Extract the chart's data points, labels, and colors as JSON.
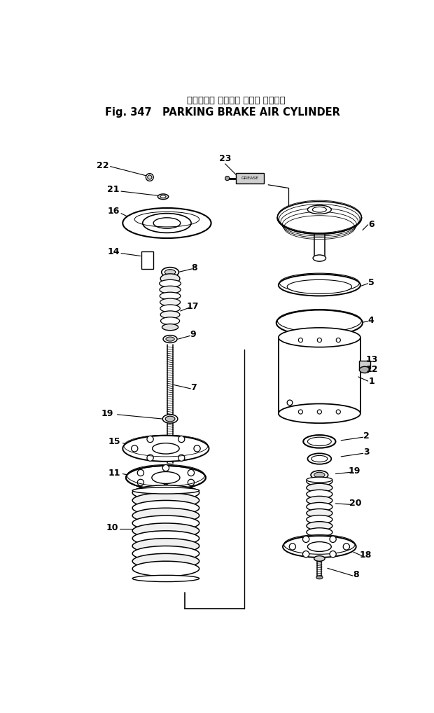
{
  "title_japanese": "パーキング ブレーキ エアー シリンダ",
  "title_english": "PARKING BRAKE AIR CYLINDER",
  "fig_number": "Fig. 347",
  "bg_color": "#ffffff",
  "line_color": "#000000"
}
